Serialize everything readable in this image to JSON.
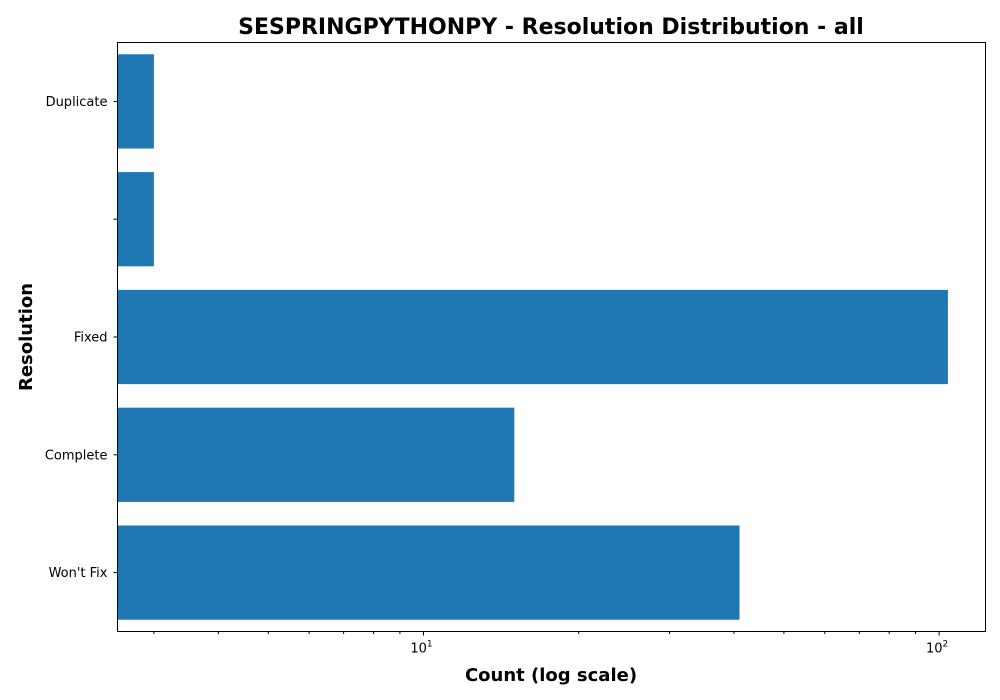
{
  "chart_data": {
    "type": "bar",
    "orientation": "horizontal",
    "title": "SESPRINGPYTHONPY - Resolution Distribution - all",
    "xlabel": "Count (log scale)",
    "ylabel": "Resolution",
    "x_scale": "log",
    "xlim": [
      2.55,
      123
    ],
    "categories": [
      "Duplicate",
      "",
      "Fixed",
      "Complete",
      "Won't Fix"
    ],
    "values": [
      3,
      3,
      104,
      15,
      41
    ],
    "bar_color": "#1f77b4",
    "x_ticks": [
      {
        "value": 10,
        "base": "10",
        "exponent": "1"
      },
      {
        "value": 100,
        "base": "10",
        "exponent": "2"
      }
    ],
    "minor_ticks": [
      3,
      4,
      5,
      6,
      7,
      8,
      9,
      20,
      30,
      40,
      50,
      60,
      70,
      80,
      90
    ],
    "grid": false,
    "legend": "none"
  }
}
